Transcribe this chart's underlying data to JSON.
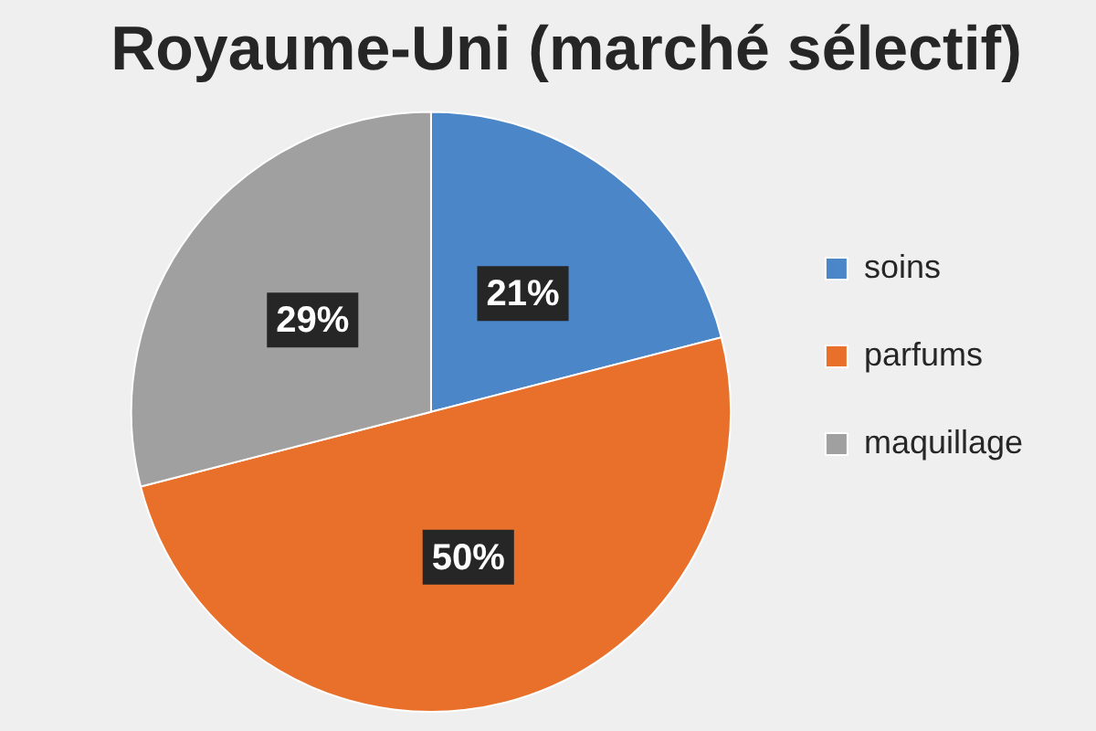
{
  "chart_data": {
    "type": "pie",
    "title": "Royaume-Uni (marché sélectif)",
    "categories": [
      "soins",
      "parfums",
      "maquillage"
    ],
    "values": [
      21,
      50,
      29
    ],
    "colors": [
      "#4a86c8",
      "#e8702a",
      "#a0a0a0"
    ],
    "value_labels": [
      "21%",
      "50%",
      "29%"
    ],
    "legend": "right"
  }
}
